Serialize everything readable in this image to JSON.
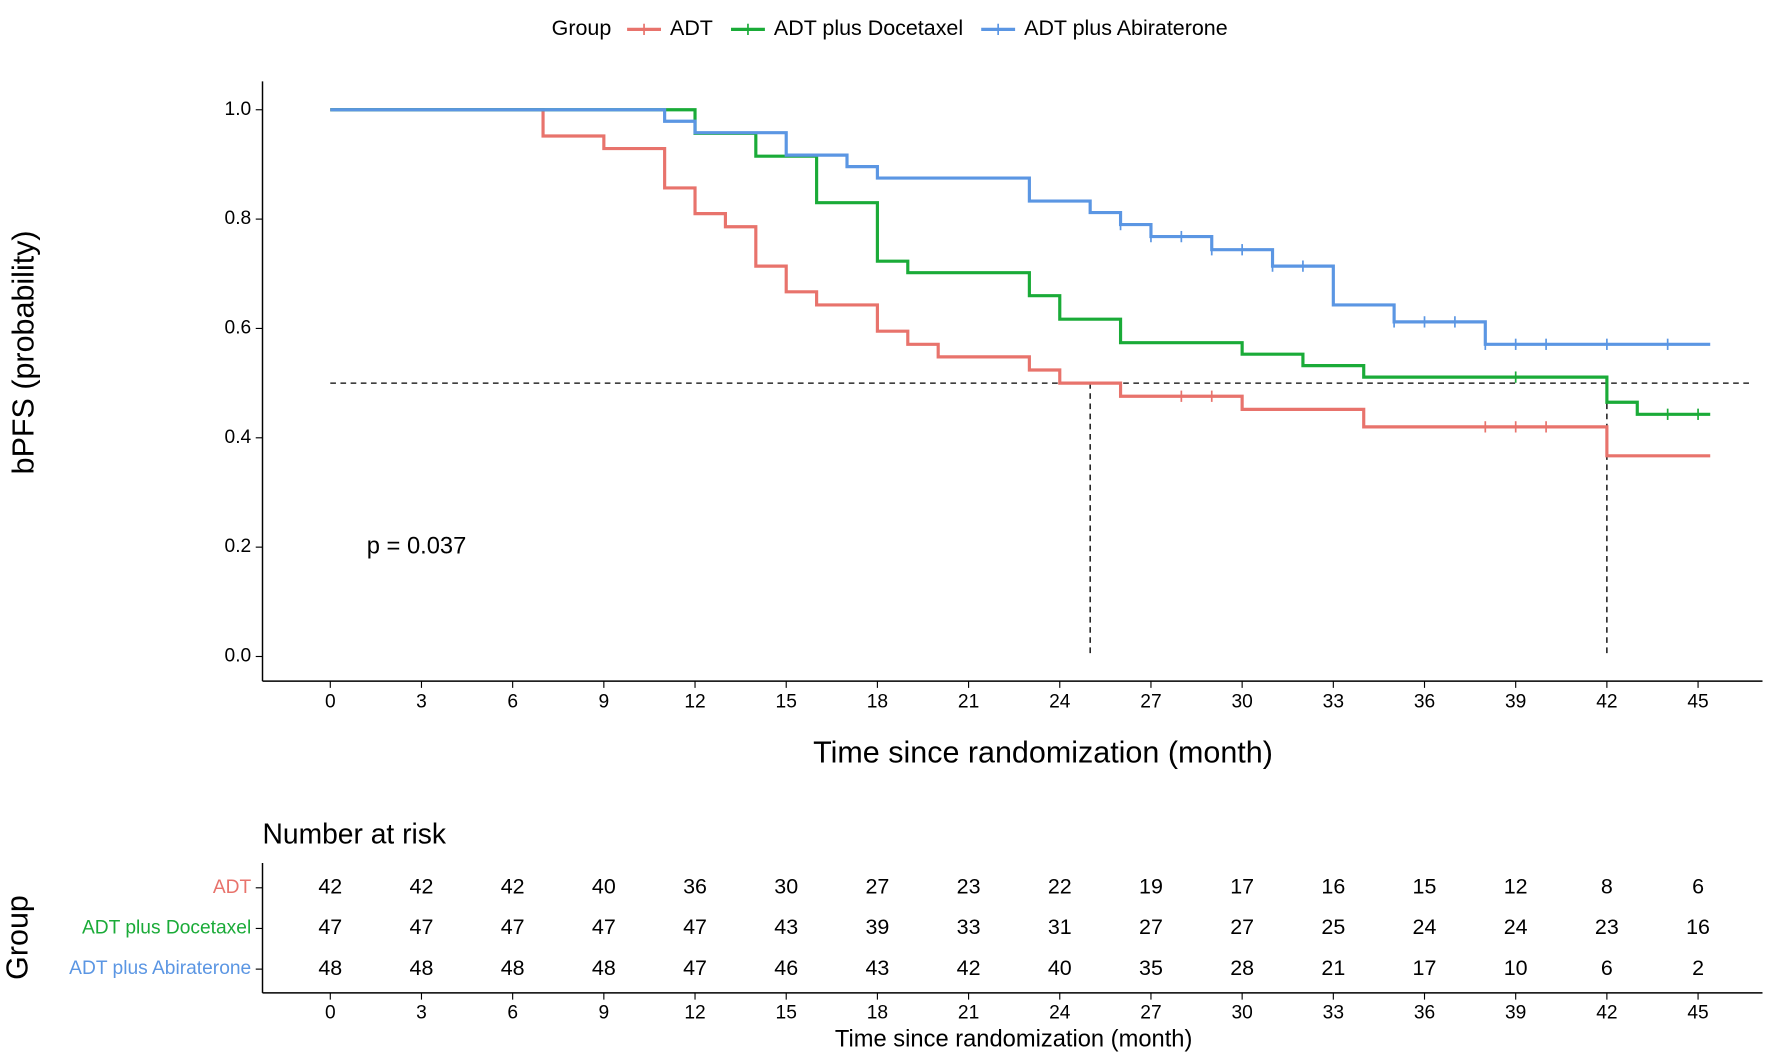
{
  "chart_data": [
    {
      "type": "step",
      "legend_title": "Group",
      "ylabel": "bPFS (probability)",
      "xlabel": "Time since randomization (month)",
      "annotation": {
        "text": "p = 0.037",
        "x": 1.2,
        "y": 0.2
      },
      "xlim": [
        -2.23,
        47.12
      ],
      "ylim": [
        -0.045,
        1.052
      ],
      "xticks": [
        0,
        3,
        6,
        9,
        12,
        15,
        18,
        21,
        24,
        27,
        30,
        33,
        36,
        39,
        42,
        45
      ],
      "yticks": [
        {
          "value": 0,
          "label": "0.0"
        },
        {
          "value": 0.2,
          "label": "0.2"
        },
        {
          "value": 0.4,
          "label": "0.4"
        },
        {
          "value": 0.6,
          "label": "0.6"
        },
        {
          "value": 0.8,
          "label": "0.8"
        },
        {
          "value": 1,
          "label": "1.0"
        }
      ],
      "hline": 0.5,
      "vlines": [
        25,
        42
      ],
      "series": [
        {
          "name": "ADT",
          "color": "#e8736c",
          "x": [
            0,
            7,
            9,
            11,
            12,
            13,
            14,
            15,
            16,
            18,
            19,
            20,
            23,
            24,
            26,
            30,
            34,
            42,
            45.4
          ],
          "values": [
            1,
            0.952,
            0.929,
            0.857,
            0.81,
            0.786,
            0.714,
            0.667,
            0.643,
            0.595,
            0.571,
            0.548,
            0.524,
            0.5,
            0.476,
            0.452,
            0.42,
            0.367,
            0.367
          ],
          "censor_x": [
            28,
            29,
            38,
            39,
            40
          ],
          "censor_values": [
            0.476,
            0.476,
            0.42,
            0.42,
            0.42
          ]
        },
        {
          "name": "ADT plus Docetaxel",
          "color": "#1aab38",
          "x": [
            0,
            12,
            14,
            16,
            18,
            19,
            23,
            24,
            26,
            30,
            32,
            34,
            42,
            43,
            45.4
          ],
          "values": [
            1,
            0.957,
            0.915,
            0.83,
            0.723,
            0.702,
            0.66,
            0.617,
            0.574,
            0.553,
            0.532,
            0.511,
            0.465,
            0.443,
            0.443
          ],
          "censor_x": [
            39,
            44,
            45
          ],
          "censor_values": [
            0.511,
            0.443,
            0.443
          ]
        },
        {
          "name": "ADT plus Abiraterone",
          "color": "#5b96e3",
          "x": [
            0,
            11,
            12,
            15,
            17,
            18,
            23,
            25,
            26,
            27,
            29,
            31,
            33,
            35,
            38,
            45.4
          ],
          "values": [
            1,
            0.979,
            0.958,
            0.917,
            0.896,
            0.875,
            0.833,
            0.812,
            0.79,
            0.768,
            0.744,
            0.714,
            0.643,
            0.612,
            0.571,
            0.571
          ],
          "censor_x": [
            26,
            27,
            28,
            29,
            30,
            31,
            32,
            35,
            36,
            37,
            38,
            39,
            40,
            42,
            44
          ],
          "censor_values": [
            0.79,
            0.768,
            0.768,
            0.744,
            0.744,
            0.714,
            0.714,
            0.612,
            0.612,
            0.612,
            0.571,
            0.571,
            0.571,
            0.571,
            0.571
          ]
        }
      ]
    },
    {
      "type": "risk_table",
      "title": "Number at risk",
      "ylabel": "Group",
      "xlabel": "Time since randomization (month)",
      "xlim": [
        -2.23,
        47.12
      ],
      "xticks": [
        0,
        3,
        6,
        9,
        12,
        15,
        18,
        21,
        24,
        27,
        30,
        33,
        36,
        39,
        42,
        45
      ],
      "series": [
        {
          "name": "ADT",
          "color": "#e8736c",
          "values": [
            42,
            42,
            42,
            40,
            36,
            30,
            27,
            23,
            22,
            19,
            17,
            16,
            15,
            12,
            8,
            6
          ]
        },
        {
          "name": "ADT plus Docetaxel",
          "color": "#1aab38",
          "values": [
            47,
            47,
            47,
            47,
            47,
            43,
            39,
            33,
            31,
            27,
            27,
            25,
            24,
            24,
            23,
            16
          ]
        },
        {
          "name": "ADT plus Abiraterone",
          "color": "#5b96e3",
          "values": [
            48,
            48,
            48,
            48,
            47,
            46,
            43,
            42,
            40,
            35,
            28,
            21,
            17,
            10,
            6,
            2
          ]
        }
      ]
    }
  ]
}
